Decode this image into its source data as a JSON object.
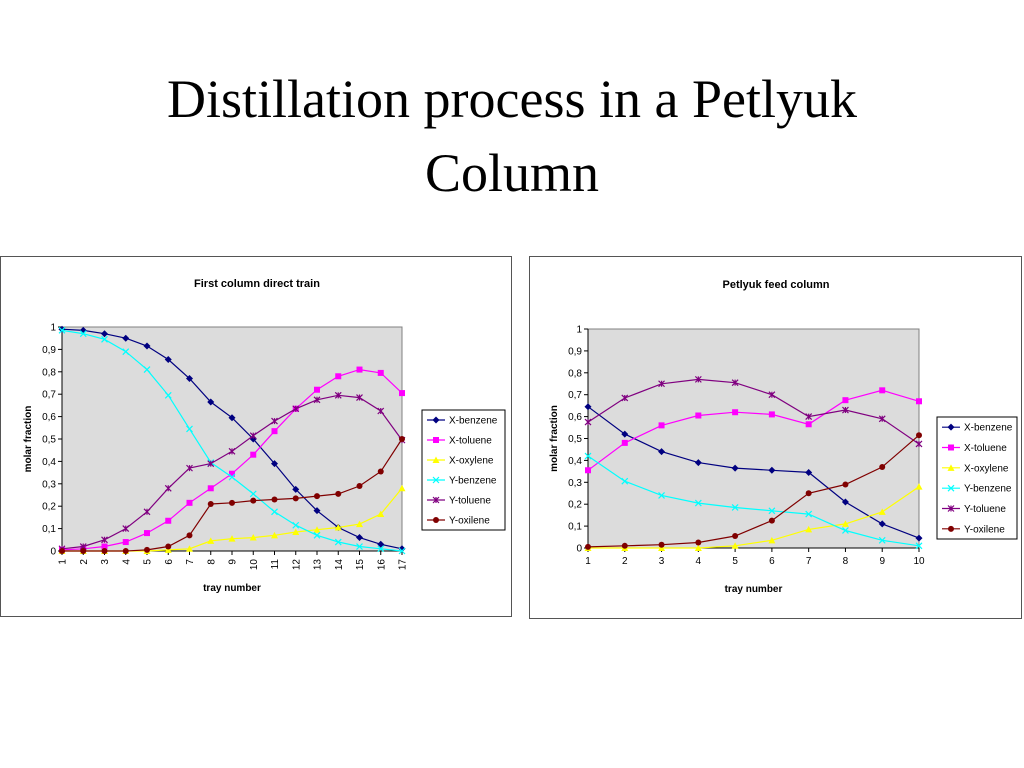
{
  "slide": {
    "title_line1": "Distillation process in a Petlyuk",
    "title_line2": "Column"
  },
  "chart_data": [
    {
      "type": "line",
      "title": "First column direct train",
      "xlabel": "tray number",
      "ylabel": "molar fraction",
      "ylim": [
        0,
        1
      ],
      "yticks": [
        "0",
        "0,1",
        "0,2",
        "0,3",
        "0,4",
        "0,5",
        "0,6",
        "0,7",
        "0,8",
        "0,9",
        "1"
      ],
      "categories": [
        "1",
        "2",
        "3",
        "4",
        "5",
        "6",
        "7",
        "8",
        "9",
        "10",
        "11",
        "12",
        "13",
        "14",
        "15",
        "16",
        "17"
      ],
      "grid": false,
      "legend": "right",
      "series": [
        {
          "name": "X-benzene",
          "color": "#000080",
          "marker": "diamond",
          "values": [
            0.99,
            0.985,
            0.97,
            0.95,
            0.915,
            0.855,
            0.77,
            0.665,
            0.595,
            0.5,
            0.39,
            0.275,
            0.18,
            0.105,
            0.06,
            0.03,
            0.01
          ]
        },
        {
          "name": "X-toluene",
          "color": "#ff00ff",
          "marker": "square",
          "values": [
            0.005,
            0.01,
            0.02,
            0.04,
            0.08,
            0.135,
            0.215,
            0.28,
            0.345,
            0.43,
            0.535,
            0.635,
            0.72,
            0.78,
            0.81,
            0.795,
            0.705
          ]
        },
        {
          "name": "X-oxylene",
          "color": "#ffff00",
          "marker": "triangle",
          "values": [
            0,
            0,
            0,
            0,
            0,
            0.005,
            0.01,
            0.045,
            0.055,
            0.06,
            0.07,
            0.085,
            0.095,
            0.105,
            0.12,
            0.165,
            0.28
          ]
        },
        {
          "name": "Y-benzene",
          "color": "#00ffff",
          "marker": "x",
          "values": [
            0.985,
            0.97,
            0.945,
            0.89,
            0.81,
            0.695,
            0.545,
            0.395,
            0.33,
            0.255,
            0.175,
            0.115,
            0.07,
            0.04,
            0.02,
            0.01,
            0
          ]
        },
        {
          "name": "Y-toluene",
          "color": "#800080",
          "marker": "star",
          "values": [
            0.01,
            0.02,
            0.05,
            0.1,
            0.175,
            0.28,
            0.37,
            0.39,
            0.445,
            0.515,
            0.58,
            0.635,
            0.675,
            0.695,
            0.685,
            0.625,
            0.495
          ]
        },
        {
          "name": "Y-oxilene",
          "color": "#800000",
          "marker": "circle",
          "values": [
            0,
            0,
            0,
            0,
            0.005,
            0.02,
            0.07,
            0.21,
            0.215,
            0.225,
            0.23,
            0.235,
            0.245,
            0.255,
            0.29,
            0.355,
            0.5
          ]
        }
      ]
    },
    {
      "type": "line",
      "title": "Petlyuk feed column",
      "xlabel": "tray number",
      "ylabel": "molar fraction",
      "ylim": [
        0,
        1
      ],
      "yticks": [
        "0",
        "0,1",
        "0,2",
        "0,3",
        "0,4",
        "0,5",
        "0,6",
        "0,7",
        "0,8",
        "0,9",
        "1"
      ],
      "categories": [
        "1",
        "2",
        "3",
        "4",
        "5",
        "6",
        "7",
        "8",
        "9",
        "10"
      ],
      "grid": false,
      "legend": "right",
      "series": [
        {
          "name": "X-benzene",
          "color": "#000080",
          "marker": "diamond",
          "values": [
            0.645,
            0.52,
            0.44,
            0.39,
            0.365,
            0.355,
            0.345,
            0.21,
            0.11,
            0.045
          ]
        },
        {
          "name": "X-toluene",
          "color": "#ff00ff",
          "marker": "square",
          "values": [
            0.355,
            0.48,
            0.56,
            0.605,
            0.62,
            0.61,
            0.565,
            0.675,
            0.72,
            0.67
          ]
        },
        {
          "name": "X-oxylene",
          "color": "#ffff00",
          "marker": "triangle",
          "values": [
            0,
            0,
            0,
            0,
            0.01,
            0.035,
            0.085,
            0.11,
            0.165,
            0.28
          ]
        },
        {
          "name": "Y-benzene",
          "color": "#00ffff",
          "marker": "x",
          "values": [
            0.42,
            0.305,
            0.24,
            0.205,
            0.185,
            0.17,
            0.155,
            0.08,
            0.035,
            0.01
          ]
        },
        {
          "name": "Y-toluene",
          "color": "#800080",
          "marker": "star",
          "values": [
            0.575,
            0.685,
            0.75,
            0.77,
            0.755,
            0.7,
            0.6,
            0.63,
            0.59,
            0.475
          ]
        },
        {
          "name": "Y-oxilene",
          "color": "#800000",
          "marker": "circle",
          "values": [
            0.005,
            0.01,
            0.015,
            0.025,
            0.055,
            0.125,
            0.25,
            0.29,
            0.37,
            0.515
          ]
        }
      ]
    }
  ]
}
